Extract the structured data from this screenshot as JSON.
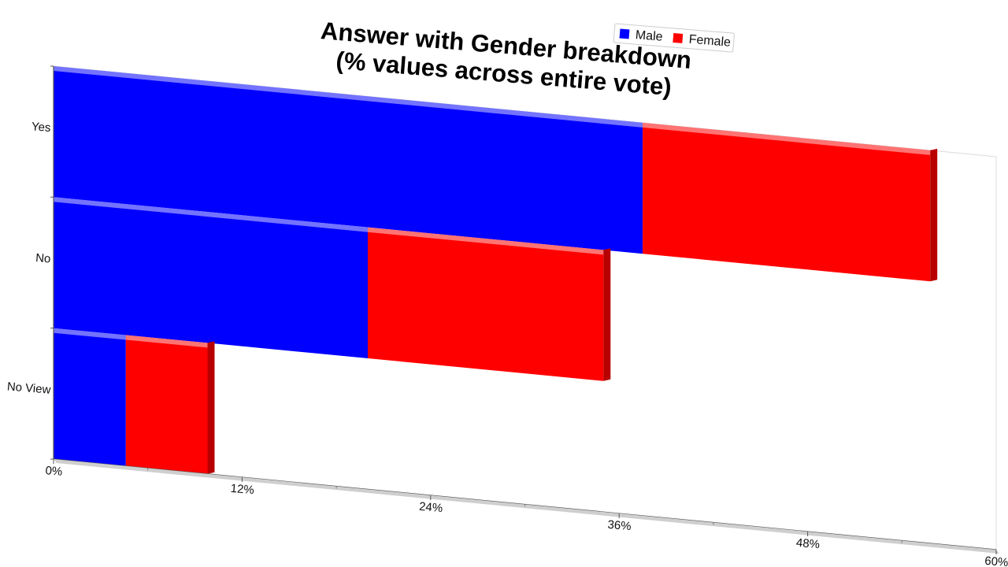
{
  "chart_data": {
    "type": "bar",
    "orientation": "horizontal",
    "stacked": true,
    "style": "3d",
    "title": "Answer with Gender breakdown",
    "subtitle": "(% values across entire vote)",
    "categories": [
      "Yes",
      "No",
      "No View"
    ],
    "series": [
      {
        "name": "Male",
        "color": "#0000ff",
        "values": [
          37.5,
          20,
          4.6
        ]
      },
      {
        "name": "Female",
        "color": "#ff0000",
        "values": [
          18.3,
          15,
          5.2
        ]
      }
    ],
    "x_ticks": [
      "0%",
      "12%",
      "24%",
      "36%",
      "48%",
      "60%"
    ],
    "xlim": [
      0,
      60
    ],
    "legend_position": "top-right"
  }
}
